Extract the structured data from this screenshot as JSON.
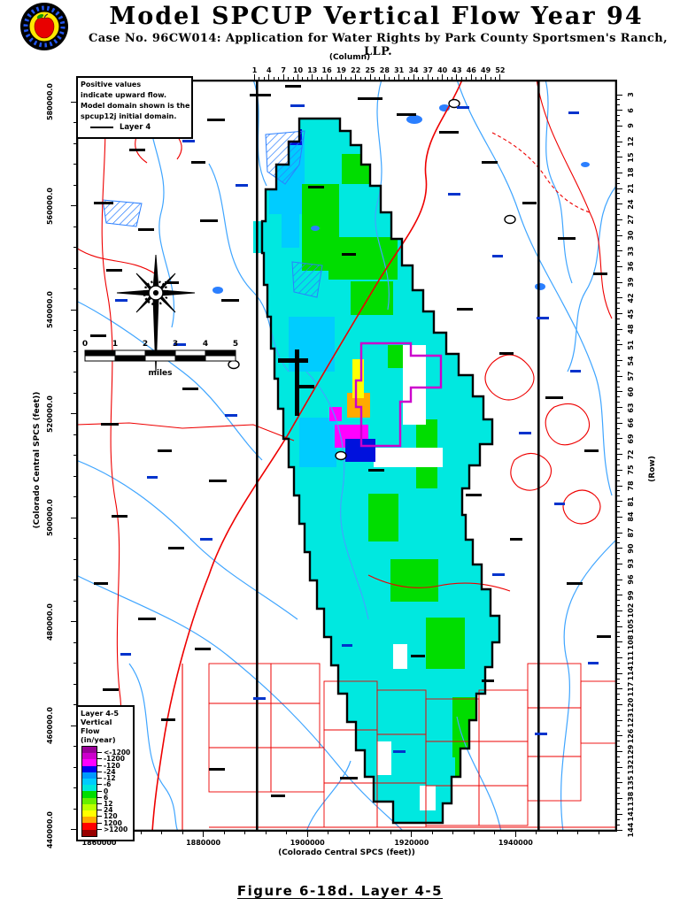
{
  "header": {
    "title": "Model SPCUP Vertical Flow Year 94",
    "subtitle": "Case No. 96CW014: Application for Water Rights by Park County Sportsmen's Ranch, LLP.",
    "logo": "apple-seal-logo"
  },
  "note_box": {
    "lines": [
      "Positive values",
      "indicate upward flow.",
      "Model domain shown is the",
      "spcup12j initial domain."
    ],
    "symbol_label": "Layer 4"
  },
  "axes": {
    "top": {
      "title": "(Column)",
      "ticks": [
        "1",
        "4",
        "7",
        "10",
        "13",
        "16",
        "19",
        "22",
        "25",
        "28",
        "31",
        "34",
        "37",
        "40",
        "43",
        "46",
        "49",
        "52"
      ]
    },
    "right": {
      "title": "(Row)",
      "ticks": [
        "3",
        "6",
        "9",
        "12",
        "15",
        "18",
        "21",
        "24",
        "27",
        "30",
        "33",
        "36",
        "39",
        "42",
        "45",
        "48",
        "51",
        "54",
        "57",
        "60",
        "63",
        "66",
        "69",
        "72",
        "75",
        "78",
        "81",
        "84",
        "87",
        "90",
        "93",
        "96",
        "99",
        "102",
        "105",
        "108",
        "111",
        "114",
        "117",
        "120",
        "123",
        "126",
        "129",
        "132",
        "135",
        "138",
        "141",
        "144"
      ]
    },
    "left": {
      "title": "(Colorado Central SPCS (feet))",
      "ticks": [
        "580000.0",
        "560000.0",
        "540000.0",
        "520000.0",
        "500000.0",
        "480000.0",
        "460000.0",
        "440000.0"
      ]
    },
    "bottom": {
      "title": "(Colorado Central SPCS (feet))",
      "ticks": [
        "1860000",
        "1880000",
        "1900000",
        "1920000",
        "1940000"
      ]
    }
  },
  "legend": {
    "title_lines": [
      "Layer 4-5",
      "Vertical",
      "Flow",
      "(in/year)"
    ],
    "tick_labels": [
      "<-1200",
      "-1200",
      "-120",
      "-24",
      "-12",
      "-6",
      "0",
      "6",
      "12",
      "24",
      "120",
      "1200",
      ">1200"
    ],
    "band_colors": [
      "#990099",
      "#CC00CC",
      "#FF00FF",
      "#0000EE",
      "#0099FF",
      "#00CCFF",
      "#00E8DC",
      "#00DD00",
      "#66EE00",
      "#BBFF00",
      "#FFFF00",
      "#FFAA00",
      "#FF0000",
      "#990000"
    ]
  },
  "scale_bar": {
    "tick_labels": [
      "0",
      "1",
      "2",
      "3",
      "4",
      "5"
    ],
    "unit": "miles"
  },
  "caption": "Figure 6-18d.   Layer 4-5",
  "colors": {
    "road": "#EE0000",
    "stream": "#3FA5FF",
    "water_label": "#0033CC",
    "domain_fill": "#00E8E0",
    "domain_outline": "#000000",
    "subdomain_outline": "#CC00CC",
    "upflow_green": "#00DD00",
    "downflow_blue": "#00CCFF",
    "anomaly_yellow": "#FFFF00",
    "anomaly_orange": "#FFAA00",
    "anomaly_magenta": "#FF00FF",
    "anomaly_dark_blue": "#0011DD"
  }
}
